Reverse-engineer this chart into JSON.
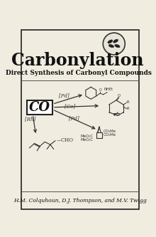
{
  "title": "Carbonylation",
  "subtitle": "Direct Synthesis of Carbonyl Compounds",
  "authors": "H.M. Colquhoun, D.J. Thompson, and M.V. Twigg",
  "co_label": "CO",
  "bg_color": "#f0ece0",
  "border_color": "#222222",
  "text_color": "#111111",
  "title_fontsize": 17,
  "subtitle_fontsize": 6.5,
  "author_fontsize": 5.5
}
